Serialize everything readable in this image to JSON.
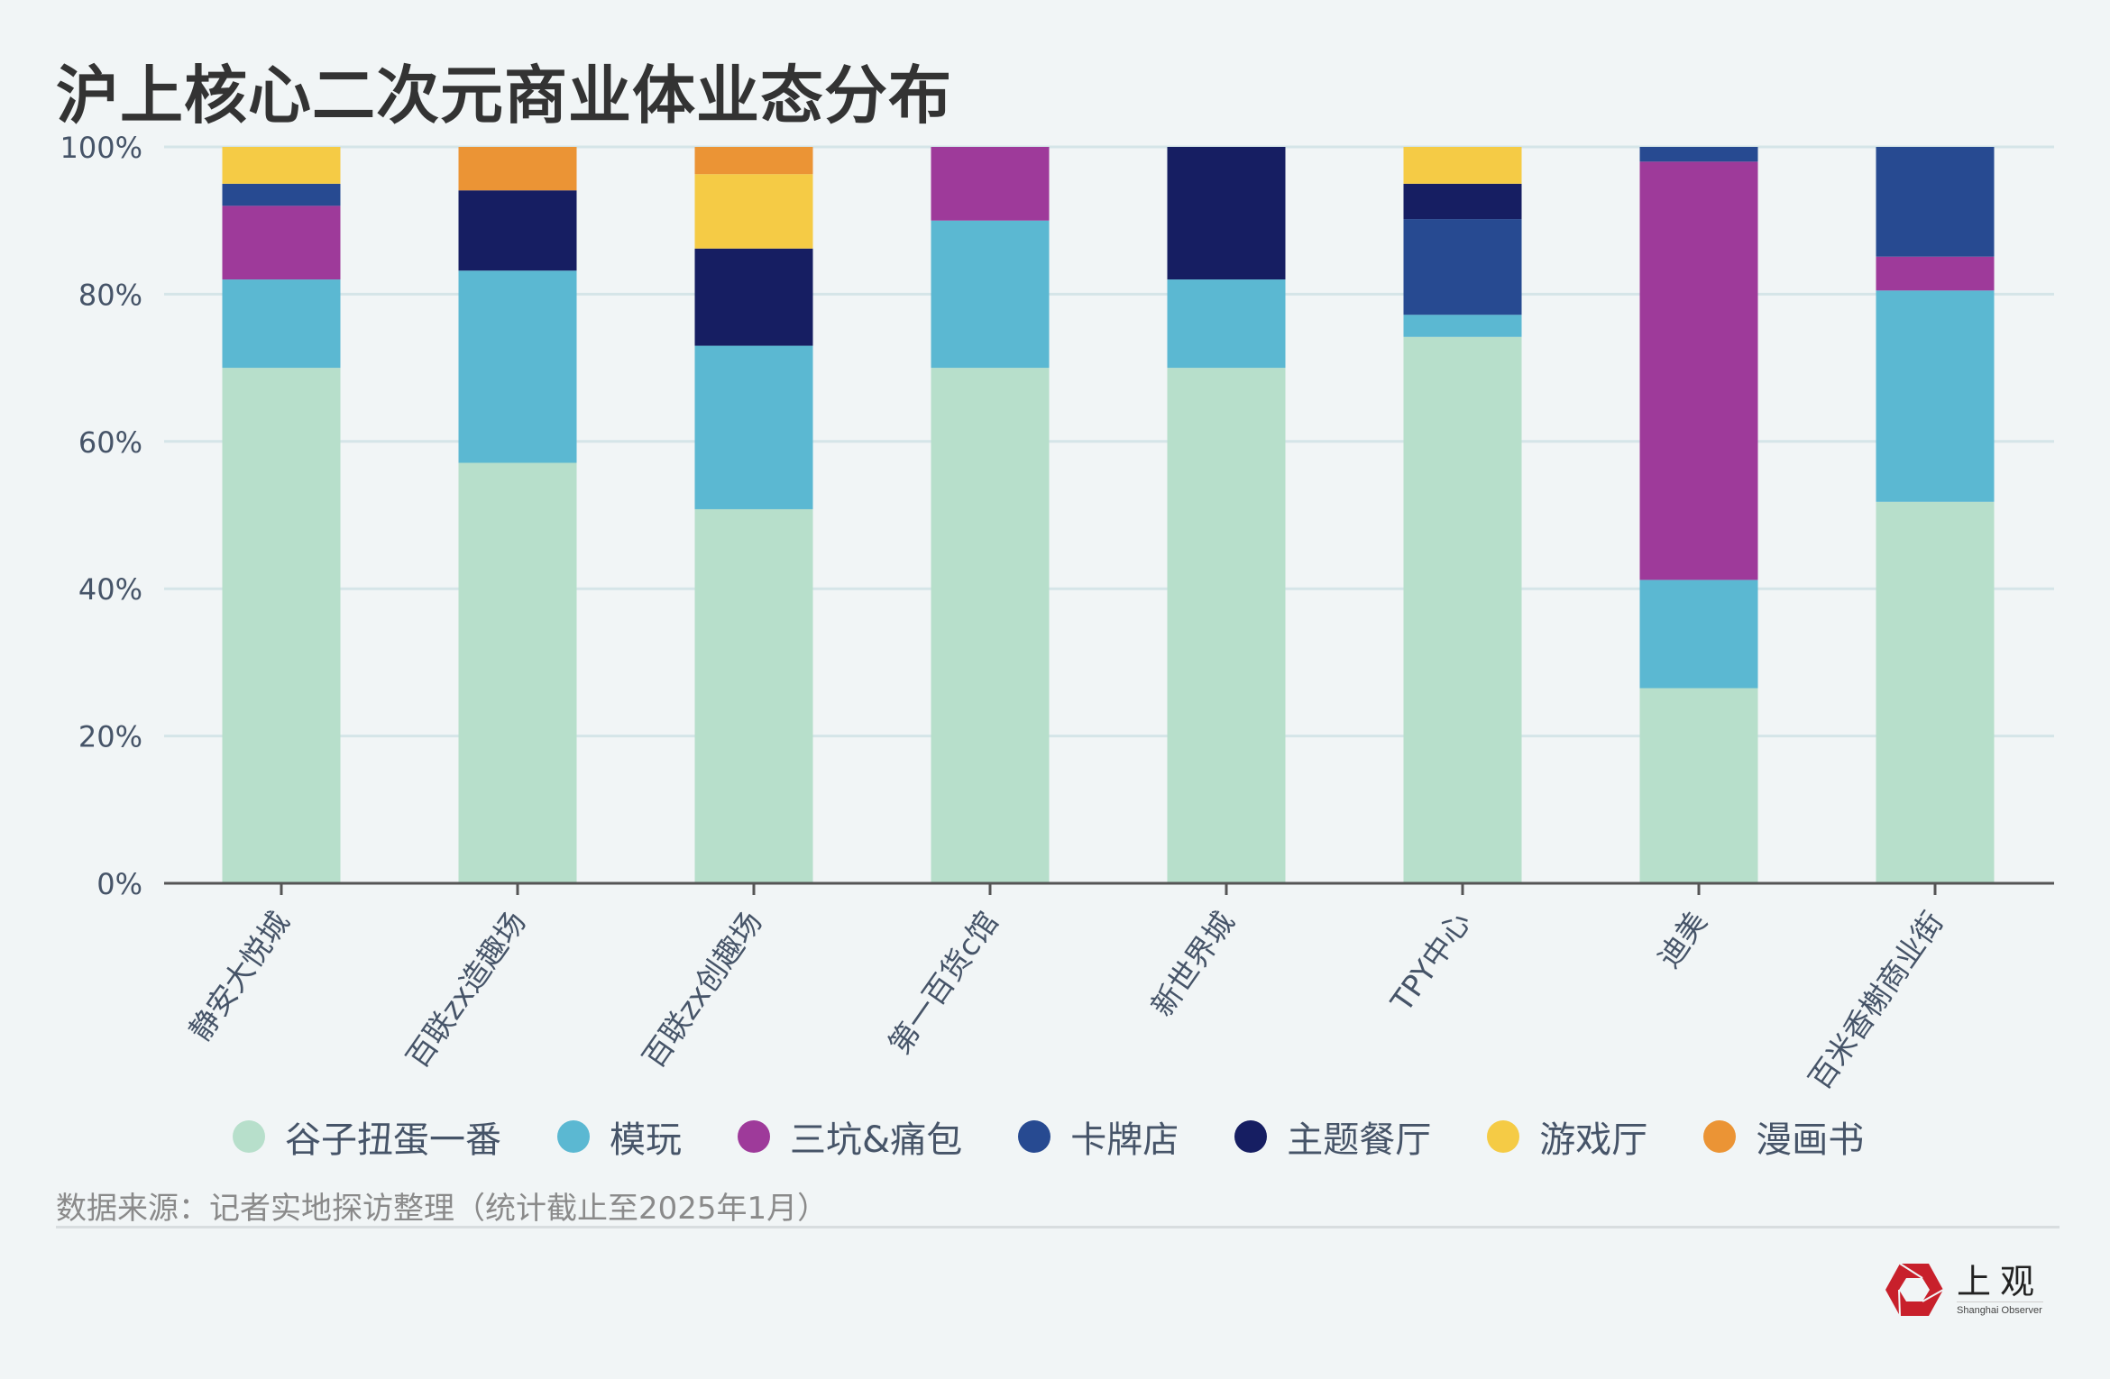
{
  "title": "沪上核心二次元商业体业态分布",
  "chart_data": {
    "type": "bar",
    "stacked": true,
    "title": "沪上核心二次元商业体业态分布",
    "xlabel": "",
    "ylabel": "",
    "ylim": [
      0,
      100
    ],
    "yticks": [
      "0%",
      "20%",
      "40%",
      "60%",
      "80%",
      "100%"
    ],
    "ytick_values": [
      0,
      20,
      40,
      60,
      80,
      100
    ],
    "grid": true,
    "legend_position": "bottom",
    "categories": [
      "静安大悦城",
      "百联zx造趣场",
      "百联zx创趣场",
      "第一百货c馆",
      "新世界城",
      "TPY中心",
      "迪美",
      "百米香榭商业街"
    ],
    "series": [
      {
        "name": "谷子扭蛋一番",
        "color": "#b7dfcb",
        "values": [
          70,
          57.1,
          50.8,
          70,
          70,
          74.2,
          26.5,
          51.8
        ]
      },
      {
        "name": "模玩",
        "color": "#5bb8d2",
        "values": [
          12,
          26.1,
          22.2,
          20,
          12,
          3,
          14.7,
          28.7
        ]
      },
      {
        "name": "三坑&痛包",
        "color": "#9e3a9a",
        "values": [
          10,
          0,
          0,
          10,
          0,
          0,
          56.8,
          4.6
        ]
      },
      {
        "name": "卡牌店",
        "color": "#274a91",
        "values": [
          3,
          0,
          0,
          0,
          0,
          13,
          2,
          14.9
        ]
      },
      {
        "name": "主题餐厅",
        "color": "#161e62",
        "values": [
          0,
          10.9,
          13.2,
          0,
          18,
          4.8,
          0,
          0
        ]
      },
      {
        "name": "游戏厅",
        "color": "#f5cb45",
        "values": [
          5,
          0,
          10.1,
          0,
          0,
          5,
          0,
          0
        ]
      },
      {
        "name": "漫画书",
        "color": "#eb9435",
        "values": [
          0,
          5.9,
          3.7,
          0,
          0,
          0,
          0,
          0
        ]
      }
    ]
  },
  "source": "数据来源：记者实地探访整理（统计截止至2025年1月）",
  "logo": {
    "cn": "上观",
    "en": "Shanghai Observer",
    "color": "#c8202b"
  }
}
